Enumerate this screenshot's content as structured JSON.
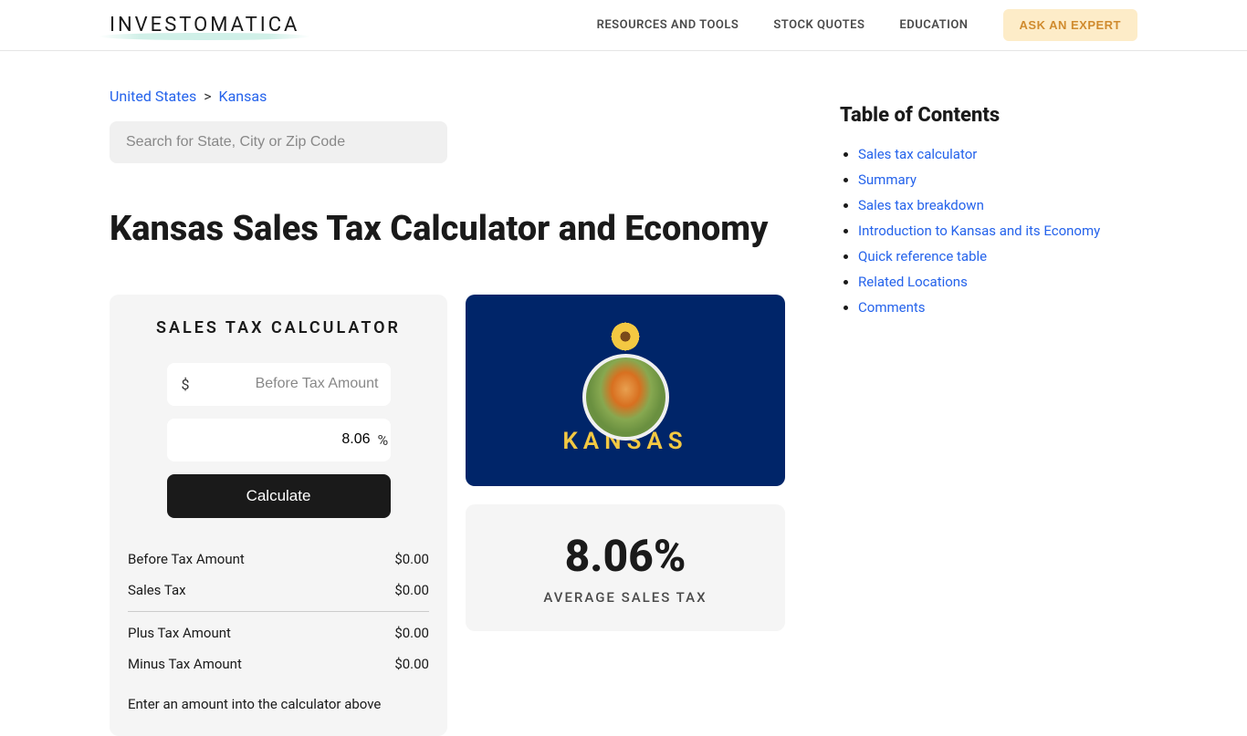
{
  "header": {
    "logo": "INVESTOMATICA",
    "nav": {
      "resources": "RESOURCES AND TOOLS",
      "stock_quotes": "STOCK QUOTES",
      "education": "EDUCATION",
      "ask_expert": "ASK AN EXPERT"
    }
  },
  "breadcrumb": {
    "country": "United States",
    "separator": ">",
    "state": "Kansas"
  },
  "search": {
    "placeholder": "Search for State, City or Zip Code"
  },
  "page_title": "Kansas Sales Tax Calculator and Economy",
  "calculator": {
    "title": "SALES TAX CALCULATOR",
    "currency_symbol": "$",
    "amount_placeholder": "Before Tax Amount",
    "rate_value": "8.06",
    "percent_symbol": "%",
    "calculate_label": "Calculate",
    "rows": {
      "before_tax_label": "Before Tax Amount",
      "before_tax_value": "$0.00",
      "sales_tax_label": "Sales Tax",
      "sales_tax_value": "$0.00",
      "plus_tax_label": "Plus Tax Amount",
      "plus_tax_value": "$0.00",
      "minus_tax_label": "Minus Tax Amount",
      "minus_tax_value": "$0.00"
    },
    "note": "Enter an amount into the calculator above"
  },
  "flag": {
    "state_name": "KANSAS",
    "background_color": "#002569",
    "text_color": "#f4c842"
  },
  "rate_card": {
    "value": "8.06%",
    "label": "AVERAGE SALES TAX"
  },
  "toc": {
    "title": "Table of Contents",
    "items": [
      "Sales tax calculator",
      "Summary",
      "Sales tax breakdown",
      "Introduction to Kansas and its Economy",
      "Quick reference table",
      "Related Locations",
      "Comments"
    ]
  }
}
